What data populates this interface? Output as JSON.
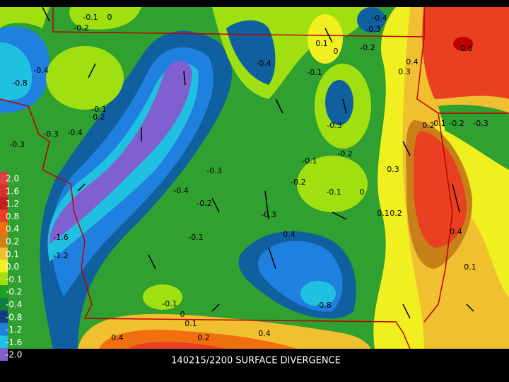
{
  "title": "140215/2200 SURFACE DIVERGENCE",
  "legend": {
    "labels": [
      "2.0",
      "1.6",
      "1.2",
      "0.8",
      "0.4",
      "0.2",
      "0.1",
      "0.0",
      "-0.1",
      "-0.2",
      "-0.4",
      "-0.8",
      "-1.2",
      "-1.6",
      "-2.0"
    ]
  },
  "contour_labels": [
    "-0.1",
    "0",
    "-0.2",
    "-0.4",
    "-0.3",
    "0.1",
    "0",
    "-0.2",
    "0.6",
    "0.4",
    "0.3",
    "-0.4",
    "-0.1",
    "-0.4",
    "-0.8",
    "-0.1",
    "0.2",
    "-0.3",
    "-0.4",
    "-0.3",
    "-0.3",
    "0.2",
    "0.1",
    "-0.2",
    "-0.3",
    "-0.2",
    "-0.1",
    "0.3",
    "-0.3",
    "-0.2",
    "-0.4",
    "-0.1",
    "0",
    "-0.2",
    "0.1",
    "0.2",
    "-0.3",
    "0.4",
    "-0.1",
    "0.4",
    "-1.6",
    "-1.2",
    "0.1",
    "-0.8",
    "-0.1",
    "0",
    "0.1",
    "0.2",
    "0.4",
    "0.4"
  ]
}
